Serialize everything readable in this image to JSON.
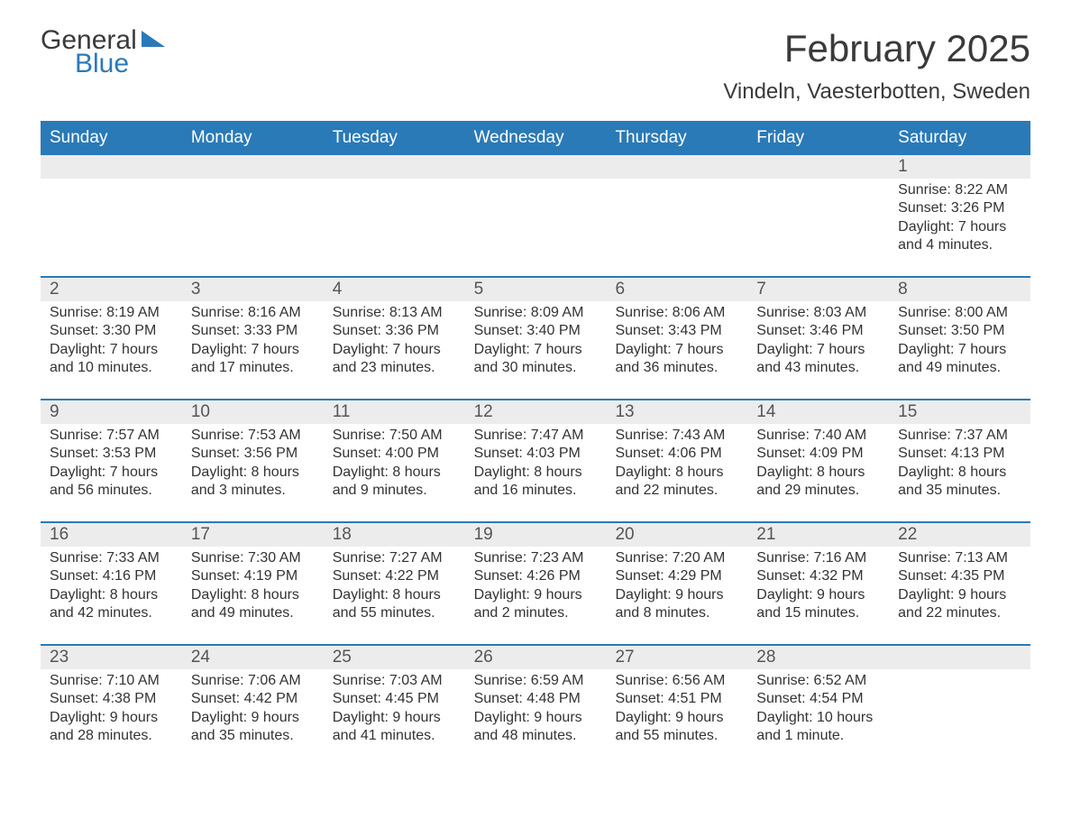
{
  "logo": {
    "line1": "General",
    "line2": "Blue"
  },
  "title": "February 2025",
  "location": "Vindeln, Vaesterbotten, Sweden",
  "colors": {
    "brand_blue": "#2a7ab8",
    "strip_grey": "#ececec",
    "text_dark": "#333333",
    "text_mid": "#555555",
    "background": "#ffffff"
  },
  "day_headers": [
    "Sunday",
    "Monday",
    "Tuesday",
    "Wednesday",
    "Thursday",
    "Friday",
    "Saturday"
  ],
  "weeks": [
    [
      {
        "num": "",
        "sunrise": "",
        "sunset": "",
        "daylight1": "",
        "daylight2": ""
      },
      {
        "num": "",
        "sunrise": "",
        "sunset": "",
        "daylight1": "",
        "daylight2": ""
      },
      {
        "num": "",
        "sunrise": "",
        "sunset": "",
        "daylight1": "",
        "daylight2": ""
      },
      {
        "num": "",
        "sunrise": "",
        "sunset": "",
        "daylight1": "",
        "daylight2": ""
      },
      {
        "num": "",
        "sunrise": "",
        "sunset": "",
        "daylight1": "",
        "daylight2": ""
      },
      {
        "num": "",
        "sunrise": "",
        "sunset": "",
        "daylight1": "",
        "daylight2": ""
      },
      {
        "num": "1",
        "sunrise": "Sunrise: 8:22 AM",
        "sunset": "Sunset: 3:26 PM",
        "daylight1": "Daylight: 7 hours",
        "daylight2": "and 4 minutes."
      }
    ],
    [
      {
        "num": "2",
        "sunrise": "Sunrise: 8:19 AM",
        "sunset": "Sunset: 3:30 PM",
        "daylight1": "Daylight: 7 hours",
        "daylight2": "and 10 minutes."
      },
      {
        "num": "3",
        "sunrise": "Sunrise: 8:16 AM",
        "sunset": "Sunset: 3:33 PM",
        "daylight1": "Daylight: 7 hours",
        "daylight2": "and 17 minutes."
      },
      {
        "num": "4",
        "sunrise": "Sunrise: 8:13 AM",
        "sunset": "Sunset: 3:36 PM",
        "daylight1": "Daylight: 7 hours",
        "daylight2": "and 23 minutes."
      },
      {
        "num": "5",
        "sunrise": "Sunrise: 8:09 AM",
        "sunset": "Sunset: 3:40 PM",
        "daylight1": "Daylight: 7 hours",
        "daylight2": "and 30 minutes."
      },
      {
        "num": "6",
        "sunrise": "Sunrise: 8:06 AM",
        "sunset": "Sunset: 3:43 PM",
        "daylight1": "Daylight: 7 hours",
        "daylight2": "and 36 minutes."
      },
      {
        "num": "7",
        "sunrise": "Sunrise: 8:03 AM",
        "sunset": "Sunset: 3:46 PM",
        "daylight1": "Daylight: 7 hours",
        "daylight2": "and 43 minutes."
      },
      {
        "num": "8",
        "sunrise": "Sunrise: 8:00 AM",
        "sunset": "Sunset: 3:50 PM",
        "daylight1": "Daylight: 7 hours",
        "daylight2": "and 49 minutes."
      }
    ],
    [
      {
        "num": "9",
        "sunrise": "Sunrise: 7:57 AM",
        "sunset": "Sunset: 3:53 PM",
        "daylight1": "Daylight: 7 hours",
        "daylight2": "and 56 minutes."
      },
      {
        "num": "10",
        "sunrise": "Sunrise: 7:53 AM",
        "sunset": "Sunset: 3:56 PM",
        "daylight1": "Daylight: 8 hours",
        "daylight2": "and 3 minutes."
      },
      {
        "num": "11",
        "sunrise": "Sunrise: 7:50 AM",
        "sunset": "Sunset: 4:00 PM",
        "daylight1": "Daylight: 8 hours",
        "daylight2": "and 9 minutes."
      },
      {
        "num": "12",
        "sunrise": "Sunrise: 7:47 AM",
        "sunset": "Sunset: 4:03 PM",
        "daylight1": "Daylight: 8 hours",
        "daylight2": "and 16 minutes."
      },
      {
        "num": "13",
        "sunrise": "Sunrise: 7:43 AM",
        "sunset": "Sunset: 4:06 PM",
        "daylight1": "Daylight: 8 hours",
        "daylight2": "and 22 minutes."
      },
      {
        "num": "14",
        "sunrise": "Sunrise: 7:40 AM",
        "sunset": "Sunset: 4:09 PM",
        "daylight1": "Daylight: 8 hours",
        "daylight2": "and 29 minutes."
      },
      {
        "num": "15",
        "sunrise": "Sunrise: 7:37 AM",
        "sunset": "Sunset: 4:13 PM",
        "daylight1": "Daylight: 8 hours",
        "daylight2": "and 35 minutes."
      }
    ],
    [
      {
        "num": "16",
        "sunrise": "Sunrise: 7:33 AM",
        "sunset": "Sunset: 4:16 PM",
        "daylight1": "Daylight: 8 hours",
        "daylight2": "and 42 minutes."
      },
      {
        "num": "17",
        "sunrise": "Sunrise: 7:30 AM",
        "sunset": "Sunset: 4:19 PM",
        "daylight1": "Daylight: 8 hours",
        "daylight2": "and 49 minutes."
      },
      {
        "num": "18",
        "sunrise": "Sunrise: 7:27 AM",
        "sunset": "Sunset: 4:22 PM",
        "daylight1": "Daylight: 8 hours",
        "daylight2": "and 55 minutes."
      },
      {
        "num": "19",
        "sunrise": "Sunrise: 7:23 AM",
        "sunset": "Sunset: 4:26 PM",
        "daylight1": "Daylight: 9 hours",
        "daylight2": "and 2 minutes."
      },
      {
        "num": "20",
        "sunrise": "Sunrise: 7:20 AM",
        "sunset": "Sunset: 4:29 PM",
        "daylight1": "Daylight: 9 hours",
        "daylight2": "and 8 minutes."
      },
      {
        "num": "21",
        "sunrise": "Sunrise: 7:16 AM",
        "sunset": "Sunset: 4:32 PM",
        "daylight1": "Daylight: 9 hours",
        "daylight2": "and 15 minutes."
      },
      {
        "num": "22",
        "sunrise": "Sunrise: 7:13 AM",
        "sunset": "Sunset: 4:35 PM",
        "daylight1": "Daylight: 9 hours",
        "daylight2": "and 22 minutes."
      }
    ],
    [
      {
        "num": "23",
        "sunrise": "Sunrise: 7:10 AM",
        "sunset": "Sunset: 4:38 PM",
        "daylight1": "Daylight: 9 hours",
        "daylight2": "and 28 minutes."
      },
      {
        "num": "24",
        "sunrise": "Sunrise: 7:06 AM",
        "sunset": "Sunset: 4:42 PM",
        "daylight1": "Daylight: 9 hours",
        "daylight2": "and 35 minutes."
      },
      {
        "num": "25",
        "sunrise": "Sunrise: 7:03 AM",
        "sunset": "Sunset: 4:45 PM",
        "daylight1": "Daylight: 9 hours",
        "daylight2": "and 41 minutes."
      },
      {
        "num": "26",
        "sunrise": "Sunrise: 6:59 AM",
        "sunset": "Sunset: 4:48 PM",
        "daylight1": "Daylight: 9 hours",
        "daylight2": "and 48 minutes."
      },
      {
        "num": "27",
        "sunrise": "Sunrise: 6:56 AM",
        "sunset": "Sunset: 4:51 PM",
        "daylight1": "Daylight: 9 hours",
        "daylight2": "and 55 minutes."
      },
      {
        "num": "28",
        "sunrise": "Sunrise: 6:52 AM",
        "sunset": "Sunset: 4:54 PM",
        "daylight1": "Daylight: 10 hours",
        "daylight2": "and 1 minute."
      },
      {
        "num": "",
        "sunrise": "",
        "sunset": "",
        "daylight1": "",
        "daylight2": ""
      }
    ]
  ]
}
